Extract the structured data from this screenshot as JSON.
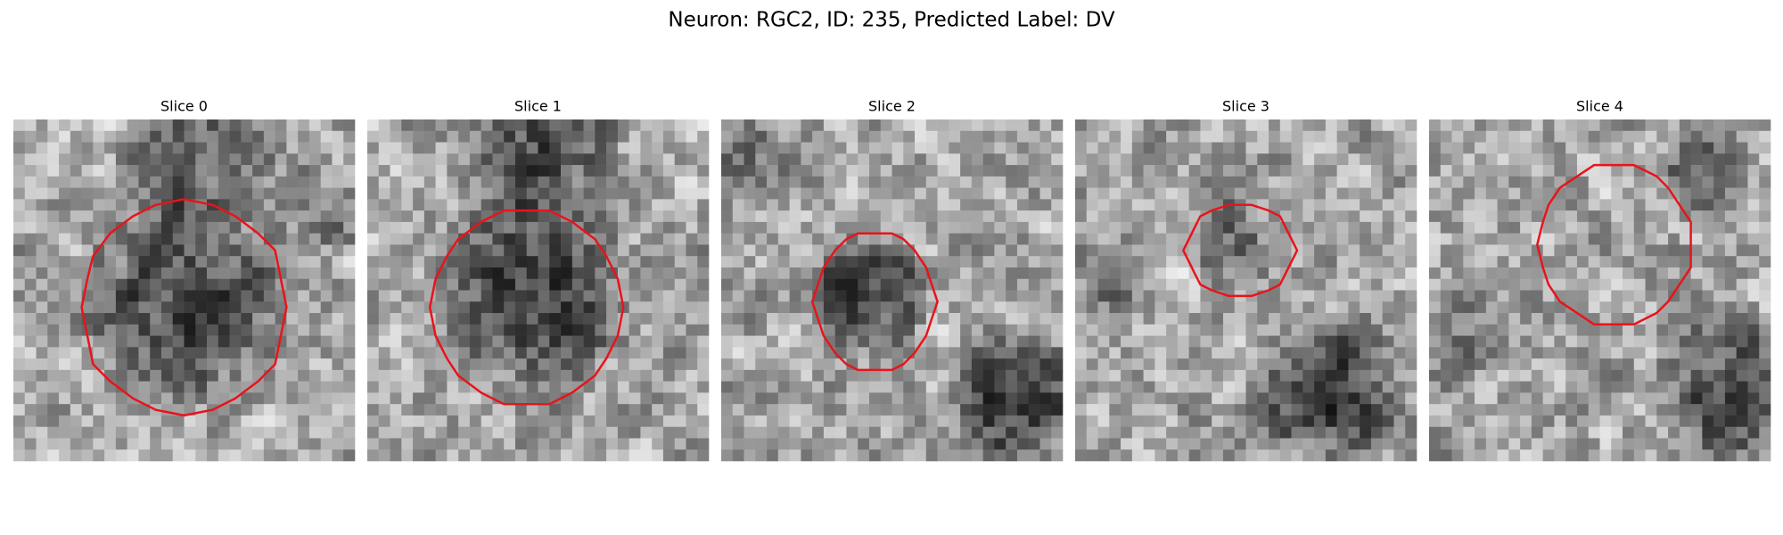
{
  "title": "Neuron: RGC2, ID: 235, Predicted Label: DV",
  "panels": [
    {
      "title": "Slice 0"
    },
    {
      "title": "Slice 1"
    },
    {
      "title": "Slice 2"
    },
    {
      "title": "Slice 3"
    },
    {
      "title": "Slice 4"
    }
  ]
}
